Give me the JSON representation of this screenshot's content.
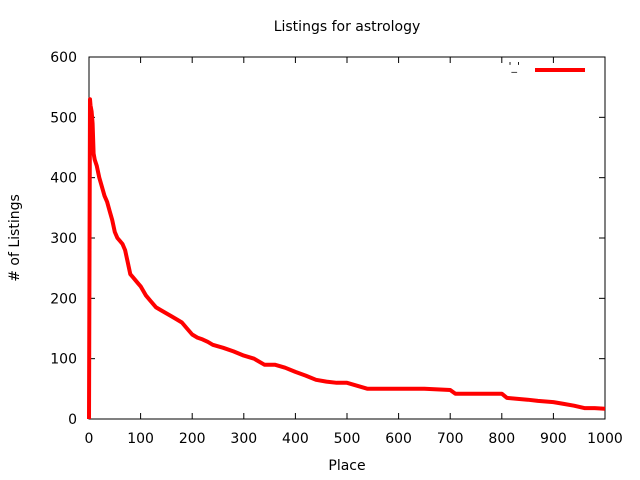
{
  "chart_data": {
    "type": "line",
    "title": "Listings for astrology",
    "xlabel": "Place",
    "ylabel": "# of Listings",
    "xlim": [
      0,
      1000
    ],
    "ylim": [
      0,
      600
    ],
    "grid": false,
    "legend_placement": "top-right",
    "x_ticks": [
      0,
      100,
      200,
      300,
      400,
      500,
      600,
      700,
      800,
      900,
      1000
    ],
    "y_ticks": [
      0,
      100,
      200,
      300,
      400,
      500,
      600
    ],
    "series": [
      {
        "name": "'_'",
        "color": "#ff0000",
        "x": [
          0,
          1,
          2,
          3,
          5,
          7,
          9,
          11,
          13,
          15,
          20,
          25,
          30,
          35,
          40,
          45,
          50,
          55,
          60,
          65,
          70,
          75,
          80,
          85,
          90,
          95,
          100,
          110,
          120,
          130,
          140,
          150,
          160,
          170,
          180,
          190,
          200,
          210,
          220,
          230,
          240,
          260,
          280,
          300,
          320,
          340,
          360,
          380,
          400,
          420,
          440,
          460,
          480,
          500,
          520,
          540,
          560,
          580,
          600,
          650,
          700,
          710,
          750,
          800,
          810,
          850,
          870,
          900,
          920,
          940,
          960,
          980,
          1000
        ],
        "y": [
          0,
          270,
          530,
          520,
          510,
          490,
          440,
          430,
          425,
          420,
          400,
          385,
          370,
          360,
          345,
          330,
          310,
          300,
          295,
          290,
          280,
          260,
          240,
          235,
          230,
          225,
          220,
          205,
          195,
          185,
          180,
          175,
          170,
          165,
          160,
          150,
          140,
          135,
          132,
          128,
          123,
          118,
          112,
          105,
          100,
          90,
          90,
          85,
          78,
          72,
          65,
          62,
          60,
          60,
          55,
          50,
          50,
          50,
          50,
          50,
          48,
          42,
          42,
          42,
          35,
          32,
          30,
          28,
          25,
          22,
          18,
          18,
          17
        ]
      }
    ]
  }
}
